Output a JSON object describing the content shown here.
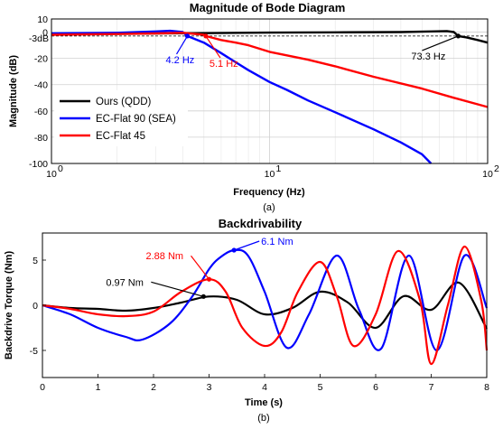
{
  "chart_data": [
    {
      "type": "line",
      "title": "Magnitude of Bode Diagram",
      "xlabel": "Frequency (Hz)",
      "ylabel": "Magnitude (dB)",
      "caption": "(a)",
      "x_scale": "log",
      "xlim": [
        1,
        100
      ],
      "ylim": [
        -100,
        10
      ],
      "x_ticks": [
        1,
        10,
        100
      ],
      "x_tick_labels": [
        "10",
        "10",
        "10"
      ],
      "x_tick_exponents": [
        "0",
        "1",
        "2"
      ],
      "y_ticks": [
        10,
        0,
        -20,
        -40,
        -60,
        -80,
        -100
      ],
      "y_tick_labels": [
        "10",
        "0",
        "-20",
        "-40",
        "-60",
        "-80",
        "-100"
      ],
      "ref_line": {
        "y": -3,
        "label": "-3dB",
        "style": "dashed"
      },
      "grid": true,
      "legend": "lower-left",
      "series": [
        {
          "name": "Ours (QDD)",
          "color": "#000000",
          "x": [
            1,
            2,
            5,
            10,
            20,
            40,
            55,
            65,
            70,
            73.3,
            80,
            90,
            100
          ],
          "y": [
            -1.5,
            -1.2,
            -0.8,
            -0.4,
            -0.2,
            0,
            0.5,
            0.8,
            0,
            -3,
            -4,
            -6,
            -8
          ]
        },
        {
          "name": "EC-Flat 90 (SEA)",
          "color": "#0000ff",
          "x": [
            1,
            2,
            3,
            3.5,
            4,
            4.2,
            5,
            6,
            7,
            8,
            10,
            12,
            15,
            20,
            30,
            40,
            50,
            55
          ],
          "y": [
            -1,
            -0.5,
            0.5,
            1,
            0,
            -3,
            -8,
            -16,
            -23,
            -29,
            -38,
            -44,
            -52,
            -61,
            -74,
            -84,
            -93,
            -100
          ]
        },
        {
          "name": "EC-Flat 45",
          "color": "#ff0000",
          "x": [
            1,
            2,
            3,
            4,
            5,
            5.1,
            6,
            7,
            8,
            10,
            15,
            20,
            30,
            50,
            70,
            100
          ],
          "y": [
            -2,
            -1.5,
            -1,
            -0.5,
            -2,
            -3,
            -6,
            -8,
            -10,
            -15,
            -21,
            -26,
            -34,
            -43,
            -50,
            -57
          ]
        }
      ],
      "annotations": [
        {
          "text": "4.2 Hz",
          "x": 4.2,
          "y": -3,
          "color": "#0000ff"
        },
        {
          "text": "5.1 Hz",
          "x": 5.1,
          "y": -3,
          "color": "#ff0000"
        },
        {
          "text": "73.3 Hz",
          "x": 73.3,
          "y": -3,
          "color": "#000000"
        }
      ]
    },
    {
      "type": "line",
      "title": "Backdrivability",
      "xlabel": "Time (s)",
      "ylabel": "Backdrive Torque (Nm)",
      "caption": "(b)",
      "xlim": [
        0,
        8
      ],
      "ylim": [
        -8,
        8
      ],
      "x_ticks": [
        0,
        1,
        2,
        3,
        4,
        5,
        6,
        7,
        8
      ],
      "x_tick_labels": [
        "0",
        "1",
        "2",
        "3",
        "4",
        "5",
        "6",
        "7",
        "8"
      ],
      "y_ticks": [
        5,
        0,
        -5
      ],
      "y_tick_labels": [
        "5",
        "0",
        "-5"
      ],
      "grid": false,
      "series": [
        {
          "name": "",
          "color": "#000000",
          "x": [
            0,
            0.5,
            1,
            1.5,
            2,
            2.5,
            3,
            3.5,
            4,
            4.5,
            5,
            5.5,
            6,
            6.5,
            7,
            7.5,
            8
          ],
          "y": [
            0,
            -0.3,
            -0.4,
            -0.6,
            -0.3,
            0.3,
            0.97,
            0.6,
            -1.0,
            -0.3,
            1.5,
            0.3,
            -2.5,
            1.0,
            -0.5,
            2.5,
            -2.6
          ]
        },
        {
          "name": "",
          "color": "#0000ff",
          "x": [
            0,
            0.5,
            1,
            1.5,
            1.8,
            2.3,
            2.7,
            3,
            3.2,
            3.45,
            3.7,
            4,
            4.4,
            4.8,
            5.3,
            5.7,
            6.1,
            6.6,
            7.1,
            7.6,
            8
          ],
          "y": [
            0,
            -1.0,
            -2.5,
            -3.5,
            -3.8,
            -2.0,
            1.0,
            4.0,
            5.3,
            6.1,
            5.5,
            1.5,
            -4.7,
            -1.0,
            5.5,
            -0.5,
            -4.8,
            5.5,
            -5.0,
            5.5,
            -0.3
          ]
        },
        {
          "name": "",
          "color": "#ff0000",
          "x": [
            0,
            0.5,
            1,
            1.5,
            2,
            2.5,
            3,
            3.3,
            3.6,
            4,
            4.3,
            4.6,
            5,
            5.3,
            5.6,
            6,
            6.4,
            6.8,
            7,
            7.3,
            7.6,
            7.9,
            8
          ],
          "y": [
            0,
            -0.4,
            -1.0,
            -1.2,
            -0.7,
            1.5,
            2.88,
            1.5,
            -2.5,
            -4.5,
            -3.0,
            1.5,
            4.8,
            1.0,
            -4.5,
            -1.0,
            6.0,
            0.5,
            -6.5,
            0.0,
            6.5,
            0.5,
            -5.0
          ]
        }
      ],
      "annotations": [
        {
          "text": "0.97 Nm",
          "x": 2.9,
          "y": 0.97,
          "color": "#000000"
        },
        {
          "text": "2.88 Nm",
          "x": 3.0,
          "y": 2.88,
          "color": "#ff0000"
        },
        {
          "text": "6.1 Nm",
          "x": 3.45,
          "y": 6.1,
          "color": "#0000ff"
        }
      ]
    }
  ]
}
